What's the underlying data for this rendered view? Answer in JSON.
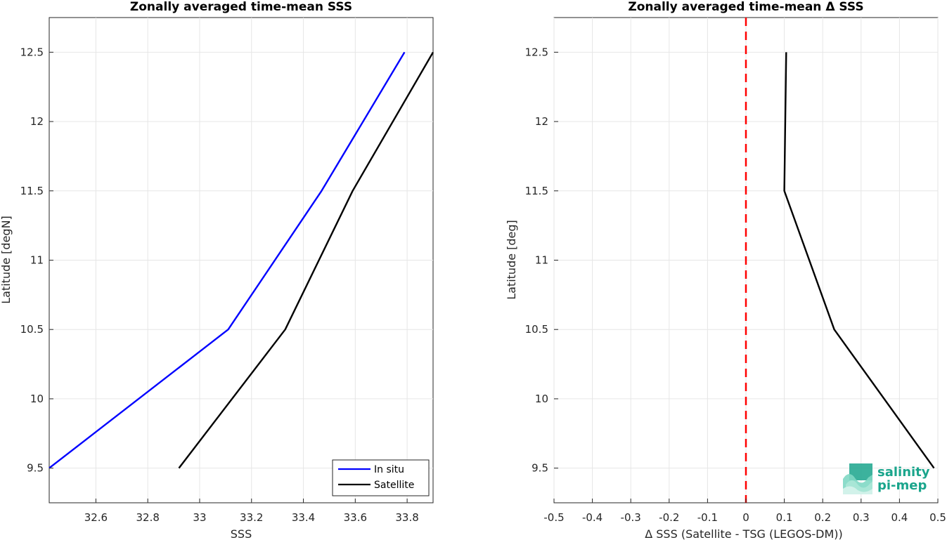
{
  "chart_data": [
    {
      "type": "line",
      "title": "Zonally averaged time-mean SSS",
      "xlabel": "SSS",
      "ylabel": "Latitude [degN]",
      "xlim": [
        32.42,
        33.9
      ],
      "ylim": [
        9.25,
        12.75
      ],
      "xticks": [
        32.6,
        32.8,
        33,
        33.2,
        33.4,
        33.6,
        33.8
      ],
      "xticklabels": [
        "32.6",
        "32.8",
        "33",
        "33.2",
        "33.4",
        "33.6",
        "33.8"
      ],
      "yticks": [
        9.5,
        10,
        10.5,
        11,
        11.5,
        12,
        12.5
      ],
      "yticklabels": [
        "9.5",
        "10",
        "10.5",
        "11",
        "11.5",
        "12",
        "12.5"
      ],
      "grid": true,
      "legend": {
        "location": "bottom-right",
        "entries": [
          "In situ",
          "Satellite"
        ]
      },
      "series": [
        {
          "name": "In situ",
          "color": "#0000ff",
          "x": [
            32.42,
            33.11,
            33.47,
            33.79
          ],
          "y": [
            9.5,
            10.5,
            11.5,
            12.5
          ]
        },
        {
          "name": "Satellite",
          "color": "#000000",
          "x": [
            32.92,
            33.33,
            33.59,
            33.9
          ],
          "y": [
            9.5,
            10.5,
            11.5,
            12.5
          ]
        }
      ]
    },
    {
      "type": "line",
      "title": "Zonally averaged time-mean Δ SSS",
      "xlabel": "Δ SSS (Satellite - TSG (LEGOS-DM))",
      "ylabel": "Latitude [deg]",
      "xlim": [
        -0.5,
        0.5
      ],
      "ylim": [
        9.25,
        12.75
      ],
      "xticks": [
        -0.5,
        -0.4,
        -0.3,
        -0.2,
        -0.1,
        0,
        0.1,
        0.2,
        0.3,
        0.4,
        0.5
      ],
      "xticklabels": [
        "-0.5",
        "-0.4",
        "-0.3",
        "-0.2",
        "-0.1",
        "0",
        "0.1",
        "0.2",
        "0.3",
        "0.4",
        "0.5"
      ],
      "yticks": [
        9.5,
        10,
        10.5,
        11,
        11.5,
        12,
        12.5
      ],
      "yticklabels": [
        "9.5",
        "10",
        "10.5",
        "11",
        "11.5",
        "12",
        "12.5"
      ],
      "grid": true,
      "reference_line": {
        "x": 0,
        "color": "#ff0000",
        "style": "dashed"
      },
      "series": [
        {
          "color": "#000000",
          "x": [
            0.49,
            0.23,
            0.1,
            0.105
          ],
          "y": [
            9.5,
            10.5,
            11.5,
            12.5
          ]
        }
      ]
    }
  ],
  "logo": {
    "line1": "salinity",
    "line2": "pi-mep",
    "color": "#1aa58c"
  }
}
